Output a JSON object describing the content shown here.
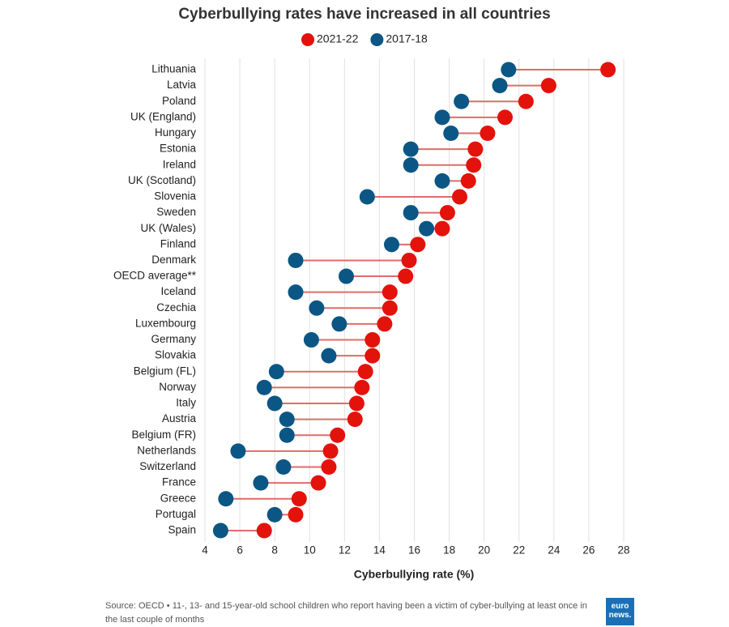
{
  "chart_data": {
    "type": "dumbbell",
    "title": "Cyberbullying rates have increased in all countries",
    "x_label": "Cyberbullying rate (%)",
    "categories": [
      "Lithuania",
      "Latvia",
      "Poland",
      "UK (England)",
      "Hungary",
      "Estonia",
      "Ireland",
      "UK (Scotland)",
      "Slovenia",
      "Sweden",
      "UK (Wales)",
      "Finland",
      "Denmark",
      "OECD average**",
      "Iceland",
      "Czechia",
      "Luxembourg",
      "Germany",
      "Slovakia",
      "Belgium (FL)",
      "Norway",
      "Italy",
      "Austria",
      "Belgium (FR)",
      "Netherlands",
      "Switzerland",
      "France",
      "Greece",
      "Portugal",
      "Spain"
    ],
    "series": [
      {
        "name": "2021-22",
        "color": "#e3120b",
        "values": [
          27.1,
          23.7,
          22.4,
          21.2,
          20.2,
          19.5,
          19.4,
          19.1,
          18.6,
          17.9,
          17.6,
          16.2,
          15.7,
          15.5,
          14.6,
          14.6,
          14.3,
          13.6,
          13.6,
          13.2,
          13.0,
          12.7,
          12.6,
          11.6,
          11.2,
          11.1,
          10.5,
          9.4,
          9.2,
          7.4
        ]
      },
      {
        "name": "2017-18",
        "color": "#0b5684",
        "values": [
          21.4,
          20.9,
          18.7,
          17.6,
          18.1,
          15.8,
          15.8,
          17.6,
          13.3,
          15.8,
          16.7,
          14.7,
          9.2,
          12.1,
          9.2,
          10.4,
          11.7,
          10.1,
          11.1,
          8.1,
          7.4,
          8.0,
          8.7,
          8.7,
          5.9,
          8.5,
          7.2,
          5.2,
          8.0,
          4.9
        ]
      }
    ],
    "xlim": [
      4,
      28
    ],
    "xticks": [
      4,
      6,
      8,
      10,
      12,
      14,
      16,
      18,
      20,
      22,
      24,
      26,
      28
    ],
    "grid": true,
    "connector_color": "#e06b6b",
    "source": "Source: OECD • 11-, 13- and 15-year-old school children who report having been a victim of cyber-bullying at least once in the last couple of months",
    "logo": [
      "euro",
      "news."
    ]
  }
}
